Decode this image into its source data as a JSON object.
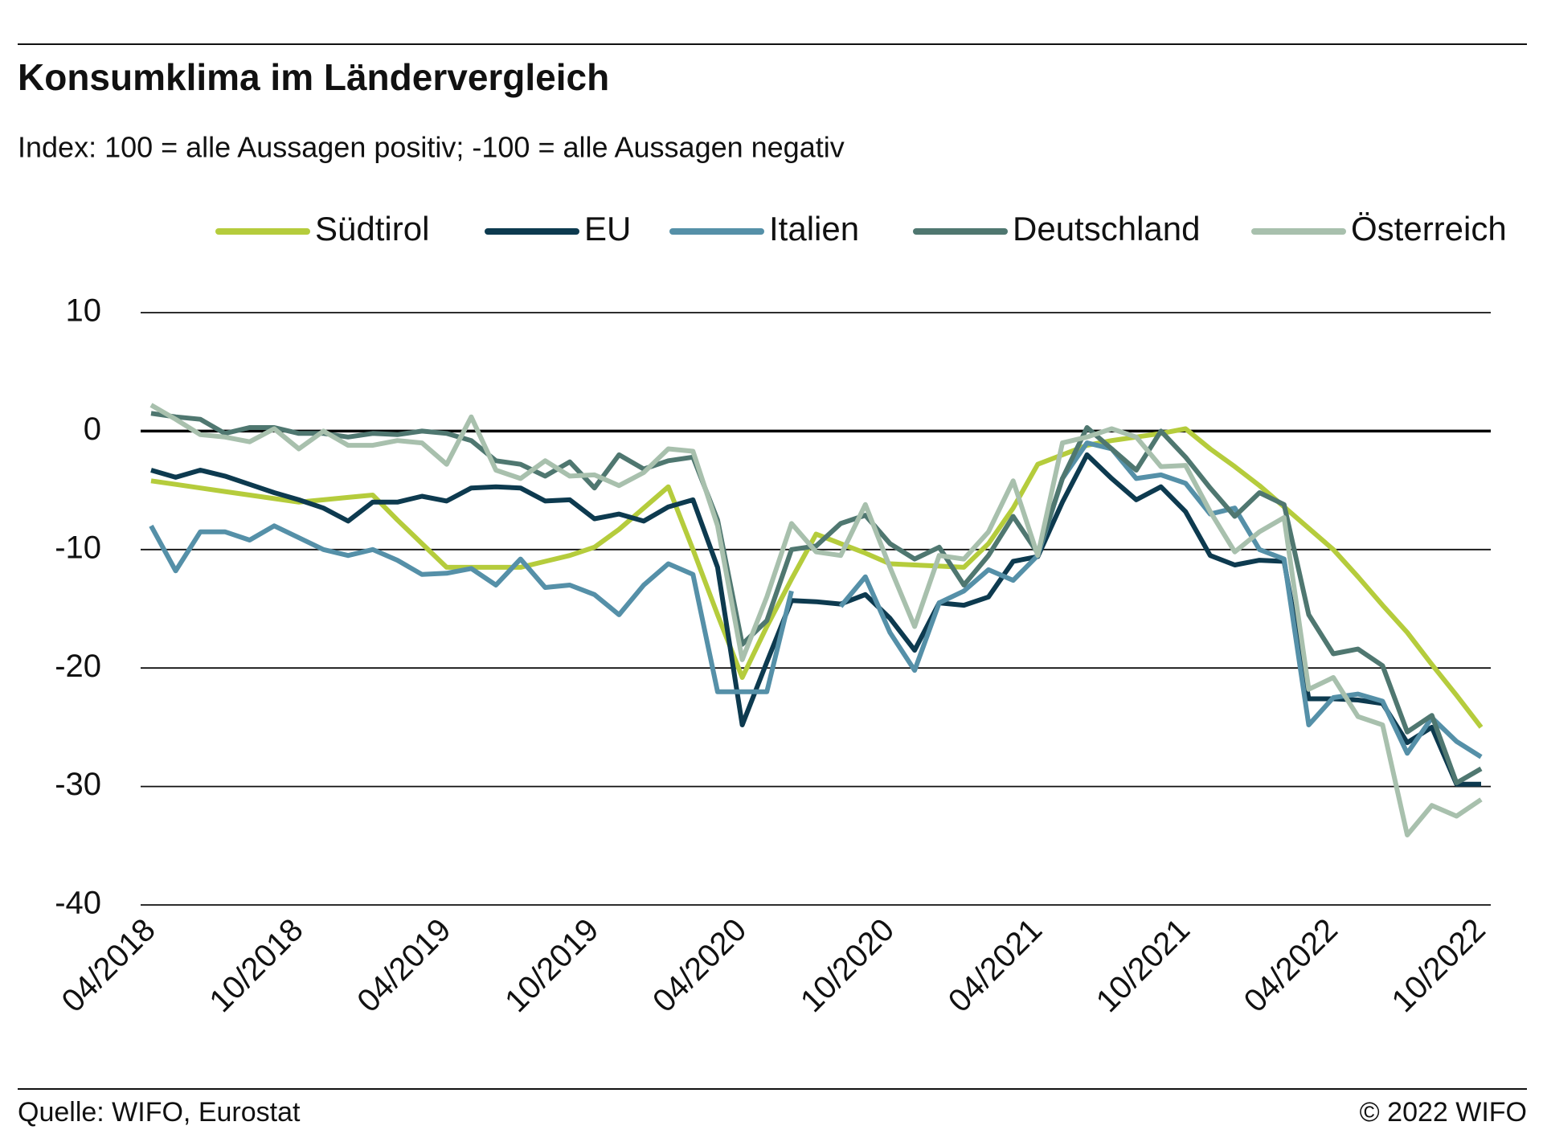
{
  "chart_data": {
    "type": "line",
    "title": "Konsumklima im Ländervergleich",
    "subtitle": "Index: 100 = alle Aussagen positiv; -100 =  alle Aussagen negativ",
    "source": "Quelle: WIFO, Eurostat",
    "copyright": "© 2022 WIFO",
    "categories": [
      "04/2018",
      null,
      null,
      null,
      null,
      null,
      "10/2018",
      null,
      null,
      null,
      null,
      null,
      "04/2019",
      null,
      null,
      null,
      null,
      null,
      "10/2019",
      null,
      null,
      null,
      null,
      null,
      "04/2020",
      null,
      null,
      null,
      null,
      null,
      "10/2020",
      null,
      null,
      null,
      null,
      null,
      "04/2021",
      null,
      null,
      null,
      null,
      null,
      "10/2021",
      null,
      null,
      null,
      null,
      null,
      "04/2022",
      null,
      null,
      null,
      null,
      null,
      "10/2022"
    ],
    "series": [
      {
        "name": "Südtirol",
        "color": "#b5cc3c",
        "values": [
          -4.2,
          -4.5,
          -4.8,
          -5.1,
          -5.4,
          -5.7,
          -6.0,
          -5.8,
          -5.6,
          -5.4,
          -7.5,
          -9.5,
          -11.5,
          -11.5,
          -11.5,
          -11.5,
          -11,
          -10.5,
          -9.8,
          -8.3,
          -6.5,
          -4.7,
          -10,
          -15.5,
          -20.8,
          -16.5,
          -12.5,
          -8.7,
          -9.5,
          -10.3,
          -11.2,
          -11.3,
          -11.4,
          -11.5,
          -9.5,
          -6.5,
          -2.8,
          -2,
          -1.2,
          -0.8,
          -0.5,
          -0.2,
          0.2,
          -1.5,
          -3,
          -4.6,
          -6.4,
          -8.2,
          -10,
          -12.3,
          -14.7,
          -17,
          -19.7,
          -22.3,
          -25
        ]
      },
      {
        "name": "EU",
        "color": "#0d3a4f",
        "values": [
          -3.3,
          -3.9,
          -3.3,
          -3.8,
          -4.5,
          -5.2,
          -5.8,
          -6.5,
          -7.6,
          -6,
          -6,
          -5.5,
          -5.9,
          -4.8,
          -4.7,
          -4.8,
          -5.9,
          -5.8,
          -7.4,
          -7,
          -7.6,
          -6.4,
          -5.8,
          -11.5,
          -24.8,
          -19.5,
          -14.3,
          -14.4,
          -14.6,
          -13.8,
          -15.8,
          -18.5,
          -14.5,
          -14.7,
          -14,
          -11,
          -10.6,
          -6,
          -2,
          -4,
          -5.8,
          -4.7,
          -6.8,
          -10.5,
          -11.3,
          -10.9,
          -11,
          -22.6,
          -22.6,
          -22.7,
          -23,
          -26.3,
          -25,
          -29.8,
          -29.8
        ]
      },
      {
        "name": "Italien",
        "color": "#5590a8",
        "values": [
          -8,
          -11.8,
          -8.5,
          -8.5,
          -9.2,
          -8,
          -9,
          -10,
          -10.5,
          -10,
          -10.9,
          -12.1,
          -12,
          -11.6,
          -13,
          -10.8,
          -13.2,
          -13,
          -13.8,
          -15.5,
          -13,
          -11.2,
          -12.1,
          -22,
          -22,
          -22,
          -13.5,
          null,
          -14.8,
          -12.3,
          -17,
          -20.2,
          -14.5,
          -13.5,
          -11.7,
          -12.6,
          -10.5,
          -4,
          -1,
          -1.5,
          -4,
          -3.7,
          -4.4,
          -7,
          -6.5,
          -10,
          -10.8,
          -24.8,
          -22.5,
          -22.2,
          -22.8,
          -27.2,
          -24.2,
          -26.2,
          -27.5
        ]
      },
      {
        "name": "Deutschland",
        "color": "#4f7770",
        "values": [
          1.5,
          1.2,
          1,
          -0.2,
          0.3,
          0.3,
          -0.2,
          -0.2,
          -0.5,
          -0.2,
          -0.3,
          0,
          -0.2,
          -0.8,
          -2.5,
          -2.8,
          -3.8,
          -2.6,
          -4.8,
          -2,
          -3.2,
          -2.5,
          -2.2,
          -7.5,
          -18,
          -16,
          -10,
          -9.7,
          -7.8,
          -7.1,
          -9.5,
          -10.8,
          -9.8,
          -13,
          -10.5,
          -7.2,
          -10.3,
          -4,
          0.3,
          -1.5,
          -3.3,
          0,
          -2.2,
          -4.8,
          -7.2,
          -5.2,
          -6.2,
          -15.5,
          -18.8,
          -18.4,
          -19.8,
          -25.4,
          -24,
          -29.7,
          -28.5
        ]
      },
      {
        "name": "Österreich",
        "color": "#a8c0ad",
        "values": [
          2.2,
          1,
          -0.3,
          -0.5,
          -0.9,
          0.2,
          -1.5,
          0,
          -1.2,
          -1.2,
          -0.8,
          -1,
          -2.8,
          1.2,
          -3.3,
          -4,
          -2.5,
          -3.8,
          -3.7,
          -4.6,
          -3.5,
          -1.5,
          -1.7,
          -8,
          -19.3,
          -14,
          -7.8,
          -10.2,
          -10.5,
          -6.2,
          -11.5,
          -16.5,
          -10.5,
          -10.8,
          -8.5,
          -4.2,
          -10.5,
          -1,
          -0.5,
          0.2,
          -0.5,
          -3,
          -2.9,
          -6.8,
          -10.2,
          -8.5,
          -7.3,
          -21.8,
          -20.8,
          -24.1,
          -24.8,
          -34.1,
          -31.6,
          -32.5,
          -31.1
        ]
      }
    ],
    "ylim": [
      -40,
      10
    ],
    "yticks": [
      -40,
      -30,
      -20,
      -10,
      0,
      10
    ],
    "grid": true,
    "legend": "top"
  }
}
